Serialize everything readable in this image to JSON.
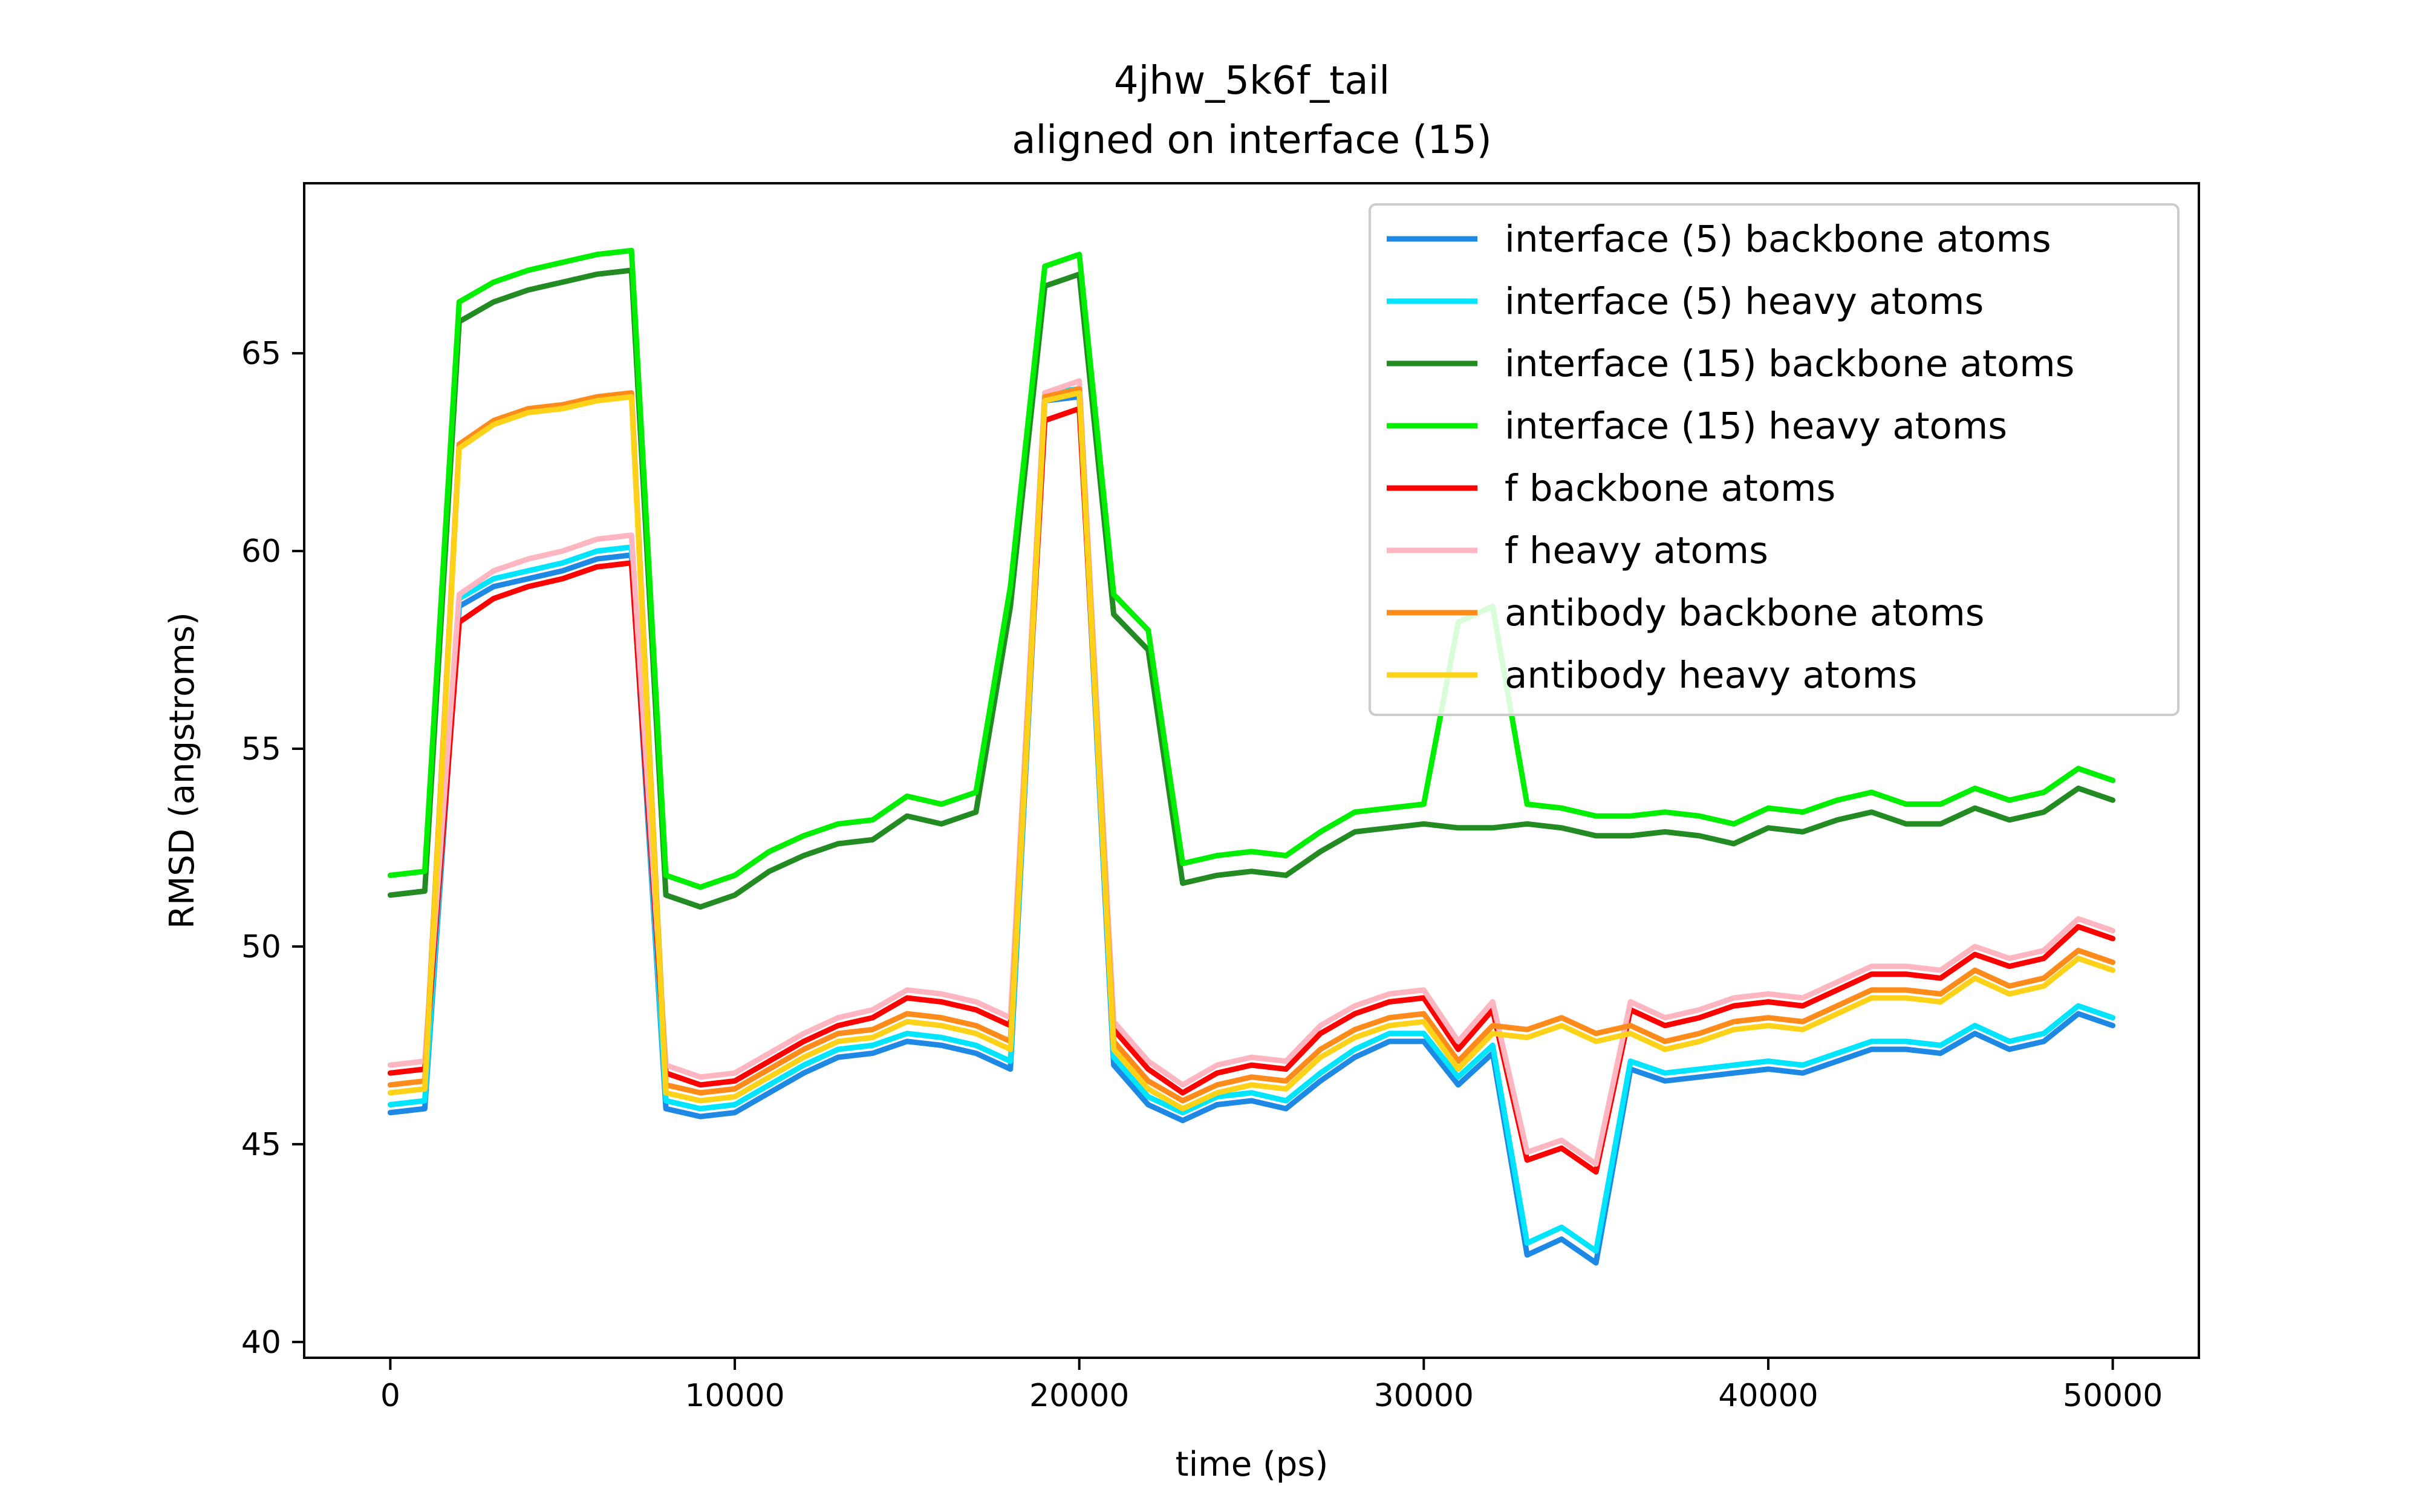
{
  "chart_data": {
    "type": "line",
    "title": "4jhw_5k6f_tail",
    "subtitle": "aligned on interface (15)",
    "xlabel": "time (ps)",
    "ylabel": "RMSD (angstroms)",
    "xlim": [
      -2500,
      52500
    ],
    "ylim": [
      39.6,
      69.3
    ],
    "xticks": [
      0,
      10000,
      20000,
      30000,
      40000,
      50000
    ],
    "yticks": [
      40,
      45,
      50,
      55,
      60,
      65
    ],
    "grid": false,
    "legend_position": "top-right",
    "x": [
      0,
      1000,
      2000,
      3000,
      4000,
      5000,
      6000,
      7000,
      8000,
      9000,
      10000,
      11000,
      12000,
      13000,
      14000,
      15000,
      16000,
      17000,
      18000,
      19000,
      20000,
      21000,
      22000,
      23000,
      24000,
      25000,
      26000,
      27000,
      28000,
      29000,
      30000,
      31000,
      32000,
      33000,
      34000,
      35000,
      36000,
      37000,
      38000,
      39000,
      40000,
      41000,
      42000,
      43000,
      44000,
      45000,
      46000,
      47000,
      48000,
      49000,
      50000
    ],
    "series": [
      {
        "name": "interface (5) backbone atoms",
        "color": "#1e88e5",
        "values": [
          45.8,
          45.9,
          58.6,
          59.1,
          59.3,
          59.5,
          59.8,
          59.9,
          45.9,
          45.7,
          45.8,
          46.3,
          46.8,
          47.2,
          47.3,
          47.6,
          47.5,
          47.3,
          46.9,
          63.8,
          63.9,
          47.0,
          46.0,
          45.6,
          46.0,
          46.1,
          45.9,
          46.6,
          47.2,
          47.6,
          47.6,
          46.5,
          47.3,
          42.2,
          42.6,
          42.0,
          46.9,
          46.6,
          46.7,
          46.8,
          46.9,
          46.8,
          47.1,
          47.4,
          47.4,
          47.3,
          47.8,
          47.4,
          47.6,
          48.3,
          48.0
        ]
      },
      {
        "name": "interface (5) heavy atoms",
        "color": "#00e5ff",
        "values": [
          46.0,
          46.1,
          58.8,
          59.3,
          59.5,
          59.7,
          60.0,
          60.1,
          46.1,
          45.9,
          46.0,
          46.5,
          47.0,
          47.4,
          47.5,
          47.8,
          47.7,
          47.5,
          47.1,
          64.0,
          64.1,
          47.2,
          46.2,
          45.8,
          46.2,
          46.3,
          46.1,
          46.8,
          47.4,
          47.8,
          47.8,
          46.7,
          47.5,
          42.5,
          42.9,
          42.3,
          47.1,
          46.8,
          46.9,
          47.0,
          47.1,
          47.0,
          47.3,
          47.6,
          47.6,
          47.5,
          48.0,
          47.6,
          47.8,
          48.5,
          48.2
        ]
      },
      {
        "name": "interface (15) backbone atoms",
        "color": "#228b22",
        "values": [
          51.3,
          51.4,
          65.8,
          66.3,
          66.6,
          66.8,
          67.0,
          67.1,
          51.3,
          51.0,
          51.3,
          51.9,
          52.3,
          52.6,
          52.7,
          53.3,
          53.1,
          53.4,
          58.6,
          66.7,
          67.0,
          58.4,
          57.5,
          51.6,
          51.8,
          51.9,
          51.8,
          52.4,
          52.9,
          53.0,
          53.1,
          53.0,
          53.0,
          53.1,
          53.0,
          52.8,
          52.8,
          52.9,
          52.8,
          52.6,
          53.0,
          52.9,
          53.2,
          53.4,
          53.1,
          53.1,
          53.5,
          53.2,
          53.4,
          54.0,
          53.7
        ]
      },
      {
        "name": "interface (15) heavy atoms",
        "color": "#00ee00",
        "values": [
          51.8,
          51.9,
          66.3,
          66.8,
          67.1,
          67.3,
          67.5,
          67.6,
          51.8,
          51.5,
          51.8,
          52.4,
          52.8,
          53.1,
          53.2,
          53.8,
          53.6,
          53.9,
          59.1,
          67.2,
          67.5,
          58.9,
          58.0,
          52.1,
          52.3,
          52.4,
          52.3,
          52.9,
          53.4,
          53.5,
          53.6,
          58.2,
          58.6,
          53.6,
          53.5,
          53.3,
          53.3,
          53.4,
          53.3,
          53.1,
          53.5,
          53.4,
          53.7,
          53.9,
          53.6,
          53.6,
          54.0,
          53.7,
          53.9,
          54.5,
          54.2
        ]
      },
      {
        "name": "f backbone atoms",
        "color": "#ff0000",
        "values": [
          46.8,
          46.9,
          58.2,
          58.8,
          59.1,
          59.3,
          59.6,
          59.7,
          46.8,
          46.5,
          46.6,
          47.1,
          47.6,
          48.0,
          48.2,
          48.7,
          48.6,
          48.4,
          48.0,
          63.3,
          63.6,
          47.9,
          46.9,
          46.3,
          46.8,
          47.0,
          46.9,
          47.8,
          48.3,
          48.6,
          48.7,
          47.4,
          48.4,
          44.6,
          44.9,
          44.3,
          48.4,
          48.0,
          48.2,
          48.5,
          48.6,
          48.5,
          48.9,
          49.3,
          49.3,
          49.2,
          49.8,
          49.5,
          49.7,
          50.5,
          50.2
        ]
      },
      {
        "name": "f heavy atoms",
        "color": "#ffb6c1",
        "values": [
          47.0,
          47.1,
          58.9,
          59.5,
          59.8,
          60.0,
          60.3,
          60.4,
          47.0,
          46.7,
          46.8,
          47.3,
          47.8,
          48.2,
          48.4,
          48.9,
          48.8,
          48.6,
          48.2,
          64.0,
          64.3,
          48.1,
          47.1,
          46.5,
          47.0,
          47.2,
          47.1,
          48.0,
          48.5,
          48.8,
          48.9,
          47.6,
          48.6,
          44.8,
          45.1,
          44.5,
          48.6,
          48.2,
          48.4,
          48.7,
          48.8,
          48.7,
          49.1,
          49.5,
          49.5,
          49.4,
          50.0,
          49.7,
          49.9,
          50.7,
          50.4
        ]
      },
      {
        "name": "antibody backbone atoms",
        "color": "#ff8c1a",
        "values": [
          46.5,
          46.6,
          62.7,
          63.3,
          63.6,
          63.7,
          63.9,
          64.0,
          46.5,
          46.3,
          46.4,
          46.9,
          47.4,
          47.8,
          47.9,
          48.3,
          48.2,
          48.0,
          47.6,
          63.9,
          64.1,
          47.6,
          46.6,
          46.1,
          46.5,
          46.7,
          46.6,
          47.4,
          47.9,
          48.2,
          48.3,
          47.1,
          48.0,
          47.9,
          48.2,
          47.8,
          48.0,
          47.6,
          47.8,
          48.1,
          48.2,
          48.1,
          48.5,
          48.9,
          48.9,
          48.8,
          49.4,
          49.0,
          49.2,
          49.9,
          49.6
        ]
      },
      {
        "name": "antibody heavy atoms",
        "color": "#ffd21a",
        "values": [
          46.3,
          46.4,
          62.6,
          63.2,
          63.5,
          63.6,
          63.8,
          63.9,
          46.3,
          46.1,
          46.2,
          46.7,
          47.2,
          47.6,
          47.7,
          48.1,
          48.0,
          47.8,
          47.4,
          63.8,
          64.0,
          47.4,
          46.4,
          45.9,
          46.3,
          46.5,
          46.4,
          47.2,
          47.7,
          48.0,
          48.1,
          46.9,
          47.8,
          47.7,
          48.0,
          47.6,
          47.8,
          47.4,
          47.6,
          47.9,
          48.0,
          47.9,
          48.3,
          48.7,
          48.7,
          48.6,
          49.2,
          48.8,
          49.0,
          49.7,
          49.4
        ]
      }
    ]
  }
}
